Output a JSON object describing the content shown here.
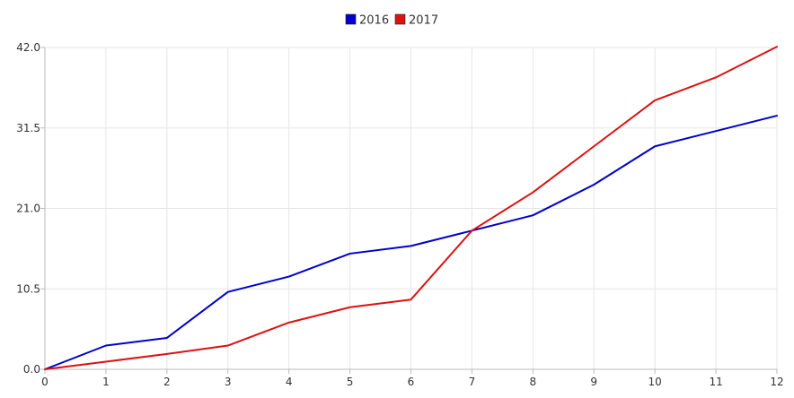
{
  "chart_data": {
    "type": "line",
    "title": "",
    "xlabel": "",
    "ylabel": "",
    "x": [
      0,
      1,
      2,
      3,
      4,
      5,
      6,
      7,
      8,
      9,
      10,
      11,
      12
    ],
    "xlim": [
      0,
      12
    ],
    "ylim": [
      0,
      42
    ],
    "x_ticks": [
      "0",
      "1",
      "2",
      "3",
      "4",
      "5",
      "6",
      "7",
      "8",
      "9",
      "10",
      "11",
      "12"
    ],
    "y_ticks": [
      "0.0",
      "10.5",
      "21.0",
      "31.5",
      "42.0"
    ],
    "grid": true,
    "legend_position": "top-center",
    "series": [
      {
        "name": "2016",
        "color": "#0000cc",
        "values": [
          0,
          3.1,
          4.1,
          10.1,
          12.1,
          15.1,
          16.1,
          18.1,
          20.1,
          24.1,
          29.1,
          31.1,
          33.1
        ]
      },
      {
        "name": "2017",
        "color": "#dd1111",
        "values": [
          0,
          1.0,
          2.0,
          3.1,
          6.1,
          8.1,
          9.1,
          18.1,
          23.1,
          29.1,
          35.1,
          38.1,
          42.1
        ]
      }
    ]
  }
}
